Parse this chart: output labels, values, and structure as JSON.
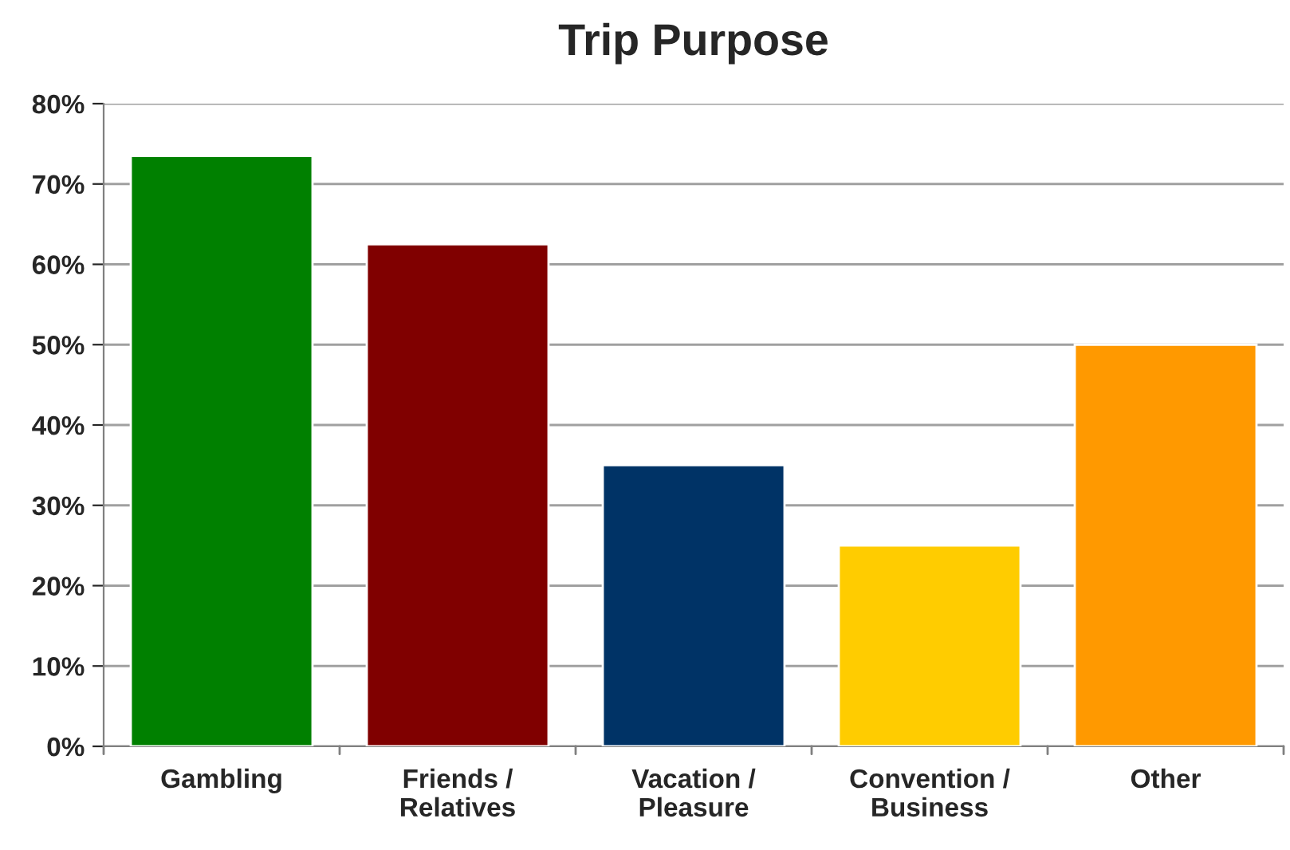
{
  "chart_data": {
    "type": "bar",
    "title": "Trip Purpose",
    "categories": [
      "Gambling",
      "Friends /\nRelatives",
      "Vacation /\nPleasure",
      "Convention /\nBusiness",
      "Other"
    ],
    "values": [
      73.5,
      62.5,
      35,
      25,
      50
    ],
    "colors": [
      "#008000",
      "#800000",
      "#003366",
      "#ffcc00",
      "#ff9900"
    ],
    "ylim": [
      0,
      80
    ],
    "yticks": [
      {
        "value": 0,
        "label": "0%"
      },
      {
        "value": 10,
        "label": "10%"
      },
      {
        "value": 20,
        "label": "20%"
      },
      {
        "value": 30,
        "label": "30%"
      },
      {
        "value": 40,
        "label": "40%"
      },
      {
        "value": 50,
        "label": "50%"
      },
      {
        "value": 60,
        "label": "60%"
      },
      {
        "value": 70,
        "label": "70%"
      },
      {
        "value": 80,
        "label": "80%"
      }
    ],
    "grid": "y"
  }
}
